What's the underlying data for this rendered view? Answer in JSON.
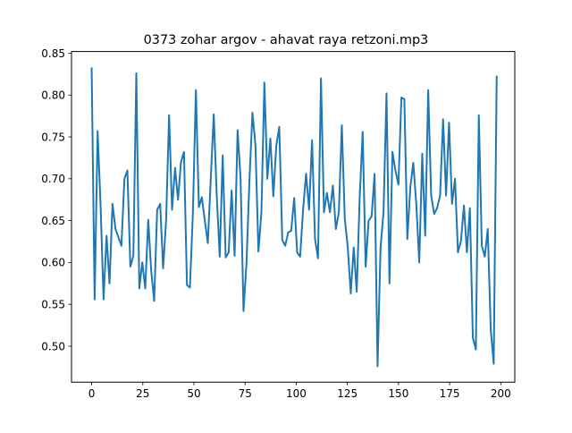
{
  "chart_data": {
    "type": "line",
    "title": "0373 zohar argov - ahavat raya retzoni.mp3",
    "xlabel": "",
    "ylabel": "",
    "xlim": [
      -9.85,
      206.85
    ],
    "ylim": [
      0.457,
      0.852
    ],
    "xticks": [
      0,
      25,
      50,
      75,
      100,
      125,
      150,
      175,
      200
    ],
    "yticks": [
      0.5,
      0.55,
      0.6,
      0.65,
      0.7,
      0.75,
      0.8,
      0.85
    ],
    "xtick_labels": [
      "0",
      "25",
      "50",
      "75",
      "100",
      "125",
      "150",
      "175",
      "200"
    ],
    "ytick_labels": [
      "0.50",
      "0.55",
      "0.60",
      "0.65",
      "0.70",
      "0.75",
      "0.80",
      "0.85"
    ],
    "grid": false,
    "legend": "none",
    "line_color": "#1f77b4",
    "series": [
      {
        "values": [
          0.832,
          0.556,
          0.757,
          0.668,
          0.556,
          0.632,
          0.575,
          0.67,
          0.64,
          0.63,
          0.62,
          0.7,
          0.71,
          0.595,
          0.608,
          0.826,
          0.569,
          0.6,
          0.569,
          0.651,
          0.59,
          0.554,
          0.663,
          0.67,
          0.593,
          0.65,
          0.776,
          0.663,
          0.713,
          0.675,
          0.72,
          0.732,
          0.573,
          0.57,
          0.66,
          0.806,
          0.666,
          0.678,
          0.65,
          0.623,
          0.7,
          0.777,
          0.68,
          0.607,
          0.728,
          0.606,
          0.612,
          0.686,
          0.608,
          0.758,
          0.7,
          0.542,
          0.6,
          0.7,
          0.779,
          0.74,
          0.613,
          0.66,
          0.815,
          0.7,
          0.748,
          0.679,
          0.74,
          0.762,
          0.627,
          0.62,
          0.636,
          0.638,
          0.677,
          0.612,
          0.607,
          0.663,
          0.706,
          0.663,
          0.746,
          0.628,
          0.605,
          0.82,
          0.66,
          0.683,
          0.66,
          0.692,
          0.64,
          0.66,
          0.764,
          0.652,
          0.618,
          0.563,
          0.618,
          0.565,
          0.678,
          0.756,
          0.595,
          0.65,
          0.655,
          0.706,
          0.476,
          0.618,
          0.66,
          0.802,
          0.575,
          0.732,
          0.71,
          0.693,
          0.797,
          0.795,
          0.628,
          0.69,
          0.719,
          0.67,
          0.6,
          0.73,
          0.632,
          0.806,
          0.68,
          0.658,
          0.665,
          0.68,
          0.771,
          0.68,
          0.767,
          0.67,
          0.7,
          0.612,
          0.626,
          0.668,
          0.612,
          0.665,
          0.51,
          0.496,
          0.776,
          0.62,
          0.607,
          0.64,
          0.52,
          0.479,
          0.822
        ],
        "x_start": 0,
        "x_end": 198
      }
    ]
  }
}
